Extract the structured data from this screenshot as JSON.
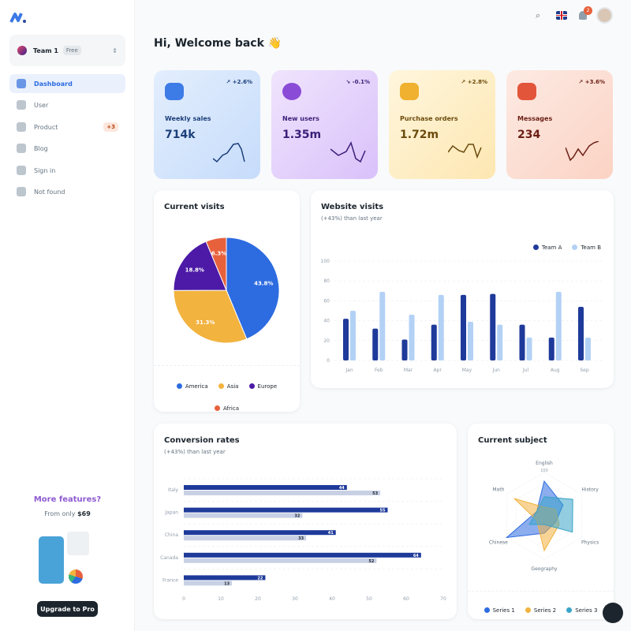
{
  "sidebar": {
    "team": {
      "name": "Team 1",
      "plan": "Free"
    },
    "items": [
      {
        "label": "Dashboard",
        "icon": "dashboard-icon",
        "active": true
      },
      {
        "label": "User",
        "icon": "user-icon"
      },
      {
        "label": "Product",
        "icon": "cart-icon",
        "badge": "+3"
      },
      {
        "label": "Blog",
        "icon": "blog-icon"
      },
      {
        "label": "Sign in",
        "icon": "lock-icon"
      },
      {
        "label": "Not found",
        "icon": "not-found-icon"
      }
    ],
    "promo": {
      "title": "More features?",
      "from": "From only",
      "price": "$69",
      "button": "Upgrade to Pro"
    }
  },
  "header": {
    "notifications": "2",
    "language": "English (UK)"
  },
  "greeting": "Hi, Welcome back 👋",
  "stats": [
    {
      "label": "Weekly sales",
      "value": "714k",
      "trend": "+2.6%",
      "direction": "up",
      "color": "#1c3f7a"
    },
    {
      "label": "New users",
      "value": "1.35m",
      "trend": "-0.1%",
      "direction": "down",
      "color": "#3b1f78"
    },
    {
      "label": "Purchase orders",
      "value": "1.72m",
      "trend": "+2.8%",
      "direction": "up",
      "color": "#6b4a0c"
    },
    {
      "label": "Messages",
      "value": "234",
      "trend": "+3.6%",
      "direction": "up",
      "color": "#6b1e14"
    }
  ],
  "chart_data": [
    {
      "type": "pie",
      "title": "Current visits",
      "slices": [
        {
          "name": "America",
          "value": 43.8,
          "label": "43.8%",
          "color": "#2d6be0"
        },
        {
          "name": "Asia",
          "value": 31.3,
          "label": "31.3%",
          "color": "#f2b33f"
        },
        {
          "name": "Europe",
          "value": 18.8,
          "label": "18.8%",
          "color": "#4c1aa6"
        },
        {
          "name": "Africa",
          "value": 6.3,
          "label": "6.3%",
          "color": "#e8613d"
        }
      ]
    },
    {
      "type": "bar",
      "title": "Website visits",
      "subtitle": "(+43%) than last year",
      "categories": [
        "Jan",
        "Feb",
        "Mar",
        "Apr",
        "May",
        "Jun",
        "Jul",
        "Aug",
        "Sep"
      ],
      "ylim": [
        0,
        100
      ],
      "yticks": [
        0,
        20,
        40,
        60,
        80,
        100
      ],
      "legend": "top-right",
      "grid": true,
      "series": [
        {
          "name": "Team A",
          "color": "#1e3a9a",
          "values": [
            42,
            32,
            21,
            36,
            66,
            67,
            36,
            23,
            54
          ]
        },
        {
          "name": "Team B",
          "color": "#b3d1f5",
          "values": [
            50,
            69,
            46,
            66,
            39,
            36,
            23,
            69,
            23
          ]
        }
      ]
    },
    {
      "type": "bar",
      "orientation": "horizontal",
      "title": "Conversion rates",
      "subtitle": "(+43%) than last year",
      "categories": [
        "Italy",
        "Japan",
        "China",
        "Canada",
        "France"
      ],
      "xlim": [
        0,
        70
      ],
      "xticks": [
        0,
        10,
        20,
        30,
        40,
        50,
        60,
        70
      ],
      "series": [
        {
          "color": "#1e3a9a",
          "values": [
            44,
            55,
            41,
            64,
            22
          ]
        },
        {
          "color": "#c8d0e4",
          "values": [
            53,
            32,
            33,
            52,
            13
          ]
        }
      ]
    },
    {
      "type": "radar",
      "title": "Current subject",
      "axes": [
        "English",
        "History",
        "Physics",
        "Geography",
        "Chinese",
        "Math"
      ],
      "max": 100,
      "max_label": "100",
      "series": [
        {
          "name": "Series 1",
          "color": "#2d6be0",
          "values": [
            80,
            50,
            30,
            40,
            100,
            20
          ]
        },
        {
          "name": "Series 2",
          "color": "#f2b33f",
          "values": [
            20,
            30,
            40,
            80,
            20,
            80
          ]
        },
        {
          "name": "Series 3",
          "color": "#3aa4c9",
          "values": [
            44,
            76,
            75,
            20,
            40,
            20
          ]
        }
      ]
    }
  ]
}
